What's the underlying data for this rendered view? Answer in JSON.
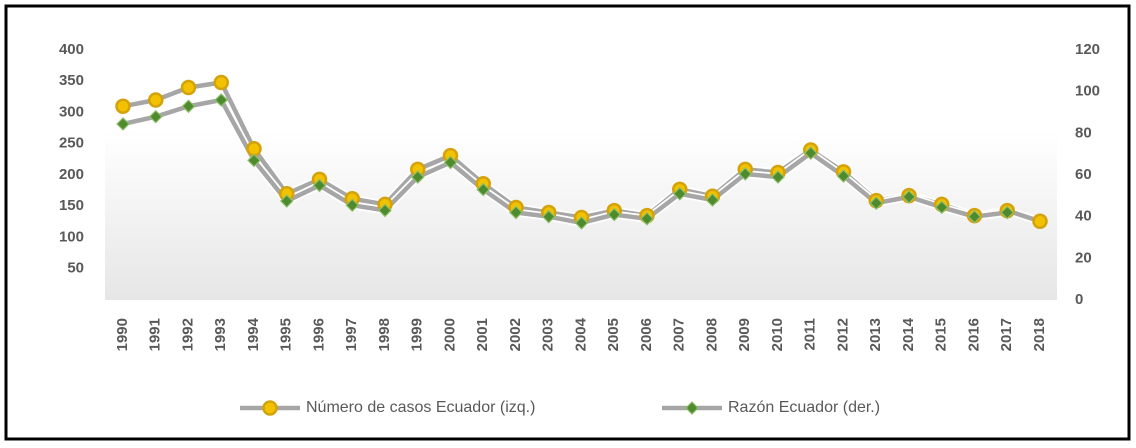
{
  "chart_data": {
    "type": "line",
    "categories": [
      "1990",
      "1991",
      "1992",
      "1993",
      "1994",
      "1995",
      "1996",
      "1997",
      "1998",
      "1999",
      "2000",
      "2001",
      "2002",
      "2003",
      "2004",
      "2005",
      "2006",
      "2007",
      "2008",
      "2009",
      "2010",
      "2011",
      "2012",
      "2013",
      "2014",
      "2015",
      "2016",
      "2017",
      "2018"
    ],
    "series": [
      {
        "name": "Número de casos Ecuador (izq.)",
        "color": "#d4a20a",
        "axis": "y",
        "values": [
          310,
          320,
          340,
          348,
          242,
          170,
          193,
          162,
          153,
          209,
          231,
          186,
          148,
          140,
          132,
          143,
          135,
          177,
          166,
          209,
          204,
          240,
          205,
          159,
          167,
          153,
          135,
          143,
          126
        ]
      },
      {
        "name": "Razón Ecuador (der.)",
        "color": "#4e8a2e",
        "axis": "y2",
        "values": [
          84.5,
          88,
          93,
          96,
          67,
          47.5,
          55,
          45.5,
          43,
          59,
          66,
          53,
          42,
          40,
          37,
          41,
          39,
          51,
          48,
          60.5,
          59,
          70.5,
          59.5,
          46.5,
          49.5,
          44.5,
          40,
          42,
          null
        ]
      }
    ],
    "ylim": [
      0,
      400
    ],
    "yticks": [
      50,
      100,
      150,
      200,
      250,
      300,
      350,
      400
    ],
    "y2lim": [
      0,
      120
    ],
    "y2ticks": [
      0,
      20,
      40,
      60,
      80,
      100,
      120
    ],
    "line_color": "#a6a6a6",
    "legend": "bottom"
  }
}
